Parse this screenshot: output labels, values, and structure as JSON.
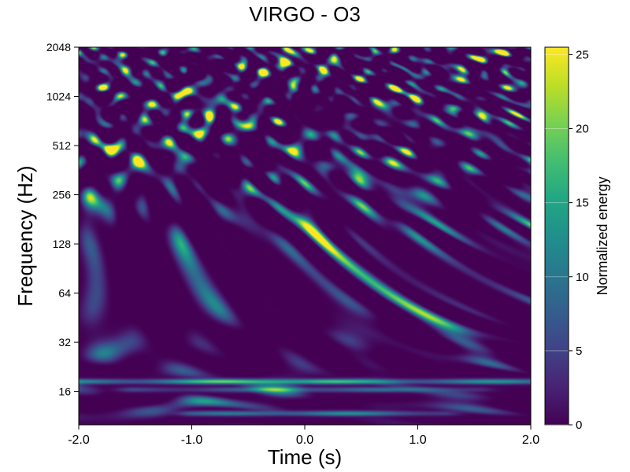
{
  "chart_data": {
    "type": "heatmap",
    "title": "VIRGO - O3",
    "xlabel": "Time (s)",
    "ylabel": "Frequency (Hz)",
    "xlim": [
      -2.0,
      2.0
    ],
    "ylim": [
      10,
      2048
    ],
    "yscale": "log2",
    "x_ticks": [
      -2.0,
      -1.0,
      0.0,
      1.0,
      2.0
    ],
    "x_tick_labels": [
      "-2.0",
      "-1.0",
      "0.0",
      "1.0",
      "2.0"
    ],
    "y_ticks": [
      16,
      32,
      64,
      128,
      256,
      512,
      1024,
      2048
    ],
    "y_tick_labels": [
      "16",
      "32",
      "64",
      "128",
      "256",
      "512",
      "1024",
      "2048"
    ],
    "colormap": "viridis",
    "colorbar": {
      "label": "Normalized energy",
      "range": [
        0,
        25.5
      ],
      "ticks": [
        0,
        5,
        10,
        15,
        20,
        25
      ],
      "tick_labels": [
        "0",
        "5",
        "10",
        "15",
        "20",
        "25"
      ]
    },
    "features": [
      {
        "t_start": -2.0,
        "t_end": 2.0,
        "freq": 18.5,
        "peak_energy": 25,
        "peak_time": -0.3
      },
      {
        "t_start": -1.0,
        "t_end": 1.2,
        "freq": 11.8,
        "peak_energy": 15,
        "peak_time": 0.0
      },
      {
        "t_start": -1.5,
        "t_end": 1.5,
        "freq": 16.5,
        "peak_energy": 12,
        "peak_time": 0.2
      }
    ],
    "grid": false
  }
}
